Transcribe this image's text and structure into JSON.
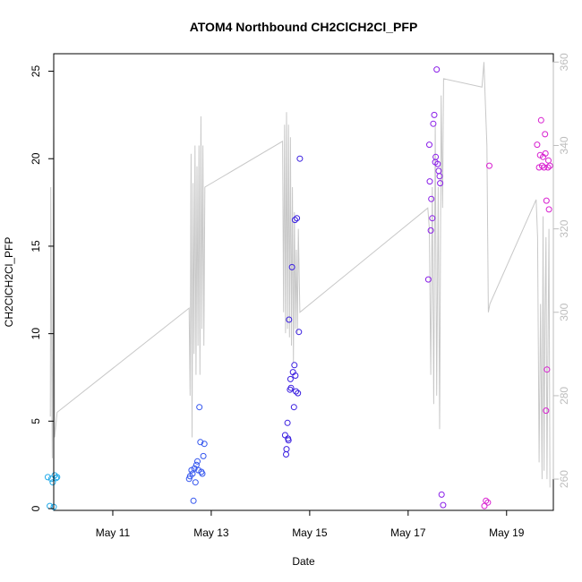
{
  "chart_data": {
    "type": "scatter",
    "title": "ATOM4 Northbound CH2ClCH2Cl_PFP",
    "xlabel": "Date",
    "ylabel": "CH2ClCH2Cl_PFP",
    "xlim": [
      9.8,
      19.95
    ],
    "ylim": [
      -0.1,
      26.0
    ],
    "y2lim": [
      252.5,
      362.0
    ],
    "xticks": [
      {
        "value": 11,
        "label": "May 11"
      },
      {
        "value": 13,
        "label": "May 13"
      },
      {
        "value": 15,
        "label": "May 15"
      },
      {
        "value": 17,
        "label": "May 17"
      },
      {
        "value": 19,
        "label": "May 19"
      }
    ],
    "yticks": [
      0,
      5,
      10,
      15,
      20,
      25
    ],
    "y2ticks": [
      260,
      280,
      300,
      320,
      340,
      360
    ],
    "colors": {
      "axis": "#000000",
      "secondary_axis": "#bdbdbd",
      "line": "#c8c8c8"
    },
    "series": [
      {
        "color": "#1fa9e8",
        "points": [
          [
            9.68,
            1.8
          ],
          [
            9.72,
            0.15
          ],
          [
            9.75,
            1.7
          ],
          [
            9.78,
            1.5
          ],
          [
            9.8,
            0.1
          ],
          [
            9.82,
            1.9
          ],
          [
            9.85,
            1.75
          ],
          [
            9.87,
            1.8
          ]
        ]
      },
      {
        "color": "#3355ee",
        "points": [
          [
            12.55,
            1.7
          ],
          [
            12.57,
            1.85
          ],
          [
            12.6,
            2.2
          ],
          [
            12.62,
            2.0
          ],
          [
            12.64,
            0.45
          ],
          [
            12.66,
            2.3
          ],
          [
            12.68,
            1.5
          ],
          [
            12.7,
            2.5
          ],
          [
            12.72,
            2.7
          ],
          [
            12.74,
            2.2
          ],
          [
            12.76,
            5.8
          ],
          [
            12.78,
            3.8
          ],
          [
            12.8,
            2.1
          ],
          [
            12.82,
            2.0
          ],
          [
            12.84,
            3.0
          ],
          [
            12.86,
            3.7
          ]
        ]
      },
      {
        "color": "#3a1fe0",
        "points": [
          [
            14.5,
            4.2
          ],
          [
            14.52,
            3.1
          ],
          [
            14.53,
            3.4
          ],
          [
            14.55,
            4.9
          ],
          [
            14.56,
            4.0
          ],
          [
            14.57,
            3.9
          ],
          [
            14.58,
            10.8
          ],
          [
            14.6,
            6.8
          ],
          [
            14.61,
            7.4
          ],
          [
            14.62,
            6.9
          ],
          [
            14.64,
            13.8
          ],
          [
            14.66,
            7.8
          ],
          [
            14.68,
            5.8
          ],
          [
            14.69,
            8.2
          ],
          [
            14.7,
            16.5
          ],
          [
            14.71,
            7.6
          ],
          [
            14.72,
            6.7
          ],
          [
            14.74,
            16.6
          ],
          [
            14.76,
            6.6
          ],
          [
            14.78,
            10.1
          ],
          [
            14.8,
            20.0
          ]
        ]
      },
      {
        "color": "#8a1fe8",
        "points": [
          [
            17.41,
            13.1
          ],
          [
            17.43,
            20.8
          ],
          [
            17.44,
            18.7
          ],
          [
            17.46,
            15.9
          ],
          [
            17.47,
            17.7
          ],
          [
            17.49,
            16.6
          ],
          [
            17.51,
            22.0
          ],
          [
            17.53,
            22.5
          ],
          [
            17.55,
            19.8
          ],
          [
            17.56,
            20.1
          ],
          [
            17.58,
            25.1
          ],
          [
            17.6,
            19.7
          ],
          [
            17.62,
            19.3
          ],
          [
            17.64,
            19.0
          ],
          [
            17.65,
            18.6
          ],
          [
            17.68,
            0.8
          ],
          [
            17.71,
            0.2
          ]
        ]
      },
      {
        "color": "#d81fd0",
        "points": [
          [
            18.55,
            0.15
          ],
          [
            18.58,
            0.45
          ],
          [
            18.62,
            0.35
          ],
          [
            18.65,
            19.6
          ],
          [
            19.62,
            20.8
          ],
          [
            19.66,
            19.5
          ],
          [
            19.68,
            20.2
          ],
          [
            19.7,
            22.2
          ],
          [
            19.72,
            19.6
          ],
          [
            19.74,
            20.1
          ],
          [
            19.76,
            19.5
          ],
          [
            19.78,
            21.4
          ],
          [
            19.79,
            20.3
          ],
          [
            19.8,
            5.6
          ],
          [
            19.81,
            17.6
          ],
          [
            19.82,
            7.95
          ],
          [
            19.84,
            19.5
          ],
          [
            19.85,
            19.9
          ],
          [
            19.86,
            17.1
          ],
          [
            19.88,
            19.6
          ]
        ]
      }
    ],
    "secondary_line": {
      "x": [
        9.73,
        9.74,
        9.76,
        9.77,
        9.8,
        9.82,
        9.87,
        12.55,
        12.57,
        12.59,
        12.61,
        12.63,
        12.65,
        12.67,
        12.69,
        12.71,
        12.73,
        12.75,
        12.77,
        12.79,
        12.81,
        12.83,
        12.85,
        12.87,
        14.45,
        14.47,
        14.49,
        14.51,
        14.53,
        14.55,
        14.57,
        14.59,
        14.61,
        14.63,
        14.65,
        14.67,
        14.69,
        14.71,
        14.73,
        14.75,
        14.77,
        14.8,
        17.4,
        17.43,
        17.46,
        17.49,
        17.52,
        17.55,
        17.58,
        17.61,
        17.64,
        17.67,
        17.7,
        17.72,
        18.5,
        18.54,
        18.57,
        18.6,
        18.63,
        18.66,
        19.6,
        19.63,
        19.66,
        19.69,
        19.72,
        19.74,
        19.76,
        19.78,
        19.8,
        19.82,
        19.84,
        19.86,
        19.88
      ],
      "y": [
        275,
        330,
        285,
        265,
        345,
        270,
        276,
        301,
        280,
        338,
        270,
        331,
        290,
        340,
        285,
        335,
        292,
        340,
        285,
        347,
        296,
        340,
        292,
        330,
        341,
        300,
        345,
        295,
        348,
        296,
        345,
        294,
        342,
        292,
        330,
        288,
        324,
        296,
        315,
        295,
        320,
        300,
        325,
        320,
        285,
        330,
        278,
        345,
        280,
        330,
        272,
        352,
        325,
        356,
        354,
        360,
        350,
        340,
        300,
        302,
        327,
        318,
        264,
        302,
        260,
        323,
        262,
        300,
        318,
        260,
        292,
        320,
        258
      ]
    }
  }
}
